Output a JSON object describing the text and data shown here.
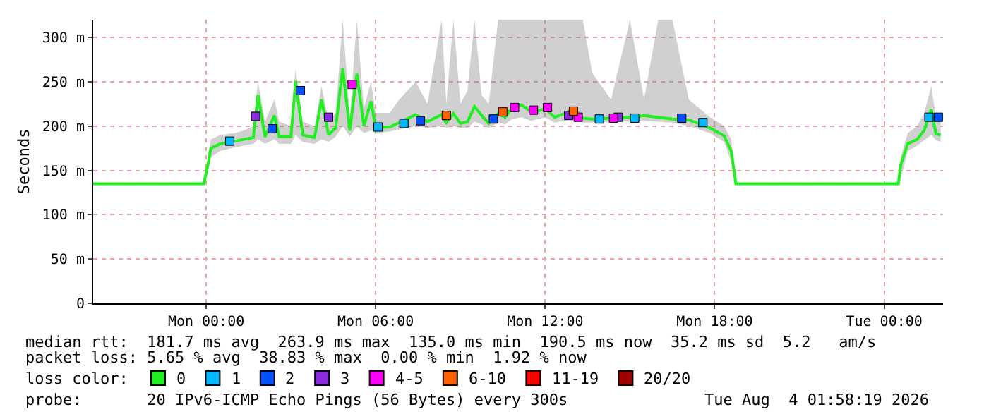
{
  "chart_data": {
    "type": "line",
    "ylabel": "Seconds",
    "legend_title": "loss color:",
    "legend": "bottom",
    "grid": true,
    "xlim": [
      "2026-08-02T20:00",
      "2026-08-04T02:05"
    ],
    "xticks": [
      {
        "value": "2026-08-03T00:00",
        "label": "Mon 00:00"
      },
      {
        "value": "2026-08-03T06:00",
        "label": "Mon 06:00"
      },
      {
        "value": "2026-08-03T12:00",
        "label": "Mon 12:00"
      },
      {
        "value": "2026-08-03T18:00",
        "label": "Mon 18:00"
      },
      {
        "value": "2026-08-04T00:00",
        "label": "Tue 00:00"
      }
    ],
    "ylim": [
      0,
      320
    ],
    "yticks": [
      {
        "value": 0,
        "label": "0"
      },
      {
        "value": 50,
        "label": "50 m"
      },
      {
        "value": 100,
        "label": "100 m"
      },
      {
        "value": 150,
        "label": "150 m"
      },
      {
        "value": 200,
        "label": "200 m"
      },
      {
        "value": 250,
        "label": "250 m"
      },
      {
        "value": 300,
        "label": "300 m"
      }
    ],
    "series": [
      {
        "name": "0",
        "color": "#20f020",
        "x": [
          "2026-08-02T20:00",
          "2026-08-02T23:55",
          "2026-08-03T00:05",
          "2026-08-03T00:10",
          "2026-08-03T00:30",
          "2026-08-03T01:00",
          "2026-08-03T01:20",
          "2026-08-03T01:40",
          "2026-08-03T01:50",
          "2026-08-03T02:05",
          "2026-08-03T02:25",
          "2026-08-03T02:35",
          "2026-08-03T03:00",
          "2026-08-03T03:10",
          "2026-08-03T03:25",
          "2026-08-03T03:50",
          "2026-08-03T04:05",
          "2026-08-03T04:20",
          "2026-08-03T04:35",
          "2026-08-03T04:50",
          "2026-08-03T05:05",
          "2026-08-03T05:20",
          "2026-08-03T05:35",
          "2026-08-03T05:50",
          "2026-08-03T06:00",
          "2026-08-03T06:30",
          "2026-08-03T06:50",
          "2026-08-03T07:25",
          "2026-08-03T07:50",
          "2026-08-03T08:20",
          "2026-08-03T08:30",
          "2026-08-03T08:45",
          "2026-08-03T09:00",
          "2026-08-03T09:15",
          "2026-08-03T09:30",
          "2026-08-03T09:45",
          "2026-08-03T10:00",
          "2026-08-03T10:20",
          "2026-08-03T10:35",
          "2026-08-03T10:50",
          "2026-08-03T11:10",
          "2026-08-03T11:30",
          "2026-08-03T11:45",
          "2026-08-03T12:00",
          "2026-08-03T12:20",
          "2026-08-03T12:40",
          "2026-08-03T13:00",
          "2026-08-03T13:20",
          "2026-08-03T13:40",
          "2026-08-03T14:20",
          "2026-08-03T15:00",
          "2026-08-03T15:30",
          "2026-08-03T16:00",
          "2026-08-03T16:30",
          "2026-08-03T17:05",
          "2026-08-03T17:50",
          "2026-08-03T18:20",
          "2026-08-03T18:35",
          "2026-08-03T18:45",
          "2026-08-04T00:30",
          "2026-08-04T00:35",
          "2026-08-04T00:50",
          "2026-08-04T01:10",
          "2026-08-04T01:25",
          "2026-08-04T01:40",
          "2026-08-04T01:50",
          "2026-08-04T02:00"
        ],
        "values": [
          135,
          135,
          160,
          175,
          180,
          183,
          185,
          187,
          235,
          188,
          212,
          188,
          188,
          251,
          190,
          187,
          230,
          190,
          198,
          265,
          195,
          259,
          200,
          228,
          198,
          199,
          204,
          213,
          205,
          213,
          204,
          214,
          203,
          205,
          222,
          212,
          203,
          214,
          210,
          221,
          224,
          216,
          217,
          220,
          210,
          214,
          220,
          209,
          208,
          209,
          210,
          212,
          210,
          208,
          207,
          198,
          189,
          172,
          135,
          135,
          156,
          180,
          185,
          195,
          219,
          191,
          190
        ],
        "lower": [
          135,
          135,
          150,
          165,
          172,
          176,
          178,
          180,
          185,
          180,
          185,
          180,
          180,
          190,
          182,
          180,
          185,
          182,
          188,
          200,
          188,
          200,
          192,
          195,
          192,
          194,
          196,
          200,
          198,
          200,
          198,
          200,
          198,
          198,
          205,
          202,
          198,
          204,
          202,
          208,
          210,
          206,
          208,
          210,
          204,
          206,
          208,
          204,
          204,
          205,
          205,
          206,
          205,
          204,
          200,
          192,
          182,
          160,
          135,
          135,
          140,
          172,
          178,
          184,
          190,
          184,
          182
        ],
        "upper": [
          135,
          135,
          170,
          185,
          190,
          192,
          195,
          200,
          250,
          205,
          230,
          205,
          200,
          265,
          205,
          200,
          245,
          205,
          215,
          320,
          210,
          320,
          220,
          250,
          215,
          215,
          230,
          250,
          225,
          320,
          225,
          320,
          225,
          240,
          320,
          235,
          225,
          320,
          320,
          320,
          320,
          320,
          320,
          320,
          320,
          320,
          320,
          320,
          260,
          230,
          320,
          230,
          320,
          320,
          230,
          210,
          200,
          185,
          135,
          135,
          165,
          192,
          200,
          215,
          245,
          210,
          205
        ]
      },
      {
        "name": "1",
        "type": "scatter",
        "marker": "square",
        "color": "#00b8ff",
        "x": [
          "2026-08-03T00:50",
          "2026-08-03T06:05",
          "2026-08-03T07:00",
          "2026-08-03T13:55",
          "2026-08-03T15:10",
          "2026-08-03T17:35",
          "2026-08-04T01:35"
        ],
        "values": [
          183,
          199,
          203,
          208,
          209,
          204,
          210
        ]
      },
      {
        "name": "2",
        "type": "scatter",
        "marker": "square",
        "color": "#0050ff",
        "x": [
          "2026-08-03T02:20",
          "2026-08-03T03:20",
          "2026-08-03T07:35",
          "2026-08-03T10:10",
          "2026-08-03T16:50",
          "2026-08-04T01:55"
        ],
        "values": [
          197,
          240,
          206,
          208,
          209,
          210
        ]
      },
      {
        "name": "3",
        "type": "scatter",
        "marker": "square",
        "color": "#8a2be2",
        "x": [
          "2026-08-03T01:45",
          "2026-08-03T04:20",
          "2026-08-03T12:50",
          "2026-08-03T14:35"
        ],
        "values": [
          211,
          210,
          212,
          210
        ]
      },
      {
        "name": "4-5",
        "type": "scatter",
        "marker": "square",
        "color": "#ff00ff",
        "x": [
          "2026-08-03T05:10",
          "2026-08-03T10:55",
          "2026-08-03T11:35",
          "2026-08-03T12:05",
          "2026-08-03T13:10",
          "2026-08-03T14:25"
        ],
        "values": [
          247,
          221,
          218,
          221,
          210,
          209
        ]
      },
      {
        "name": "6-10",
        "type": "scatter",
        "marker": "square",
        "color": "#ff6000",
        "x": [
          "2026-08-03T08:30",
          "2026-08-03T10:30",
          "2026-08-03T13:00"
        ],
        "values": [
          212,
          216,
          217
        ]
      },
      {
        "name": "11-19",
        "type": "scatter",
        "color": "#ff0000"
      },
      {
        "name": "20/20",
        "type": "scatter",
        "color": "#a00000"
      }
    ],
    "annotations": [
      "median rtt:  181.7 ms avg  263.9 ms max  135.0 ms min  190.5 ms now  35.2 ms sd  5.2   am/s",
      "packet loss: 5.65 % avg  38.83 % max  0.00 % min  1.92 % now",
      "probe:       20 IPv6-ICMP Echo Pings (56 Bytes) every 300s",
      "Tue Aug  4 01:58:19 2026"
    ]
  }
}
